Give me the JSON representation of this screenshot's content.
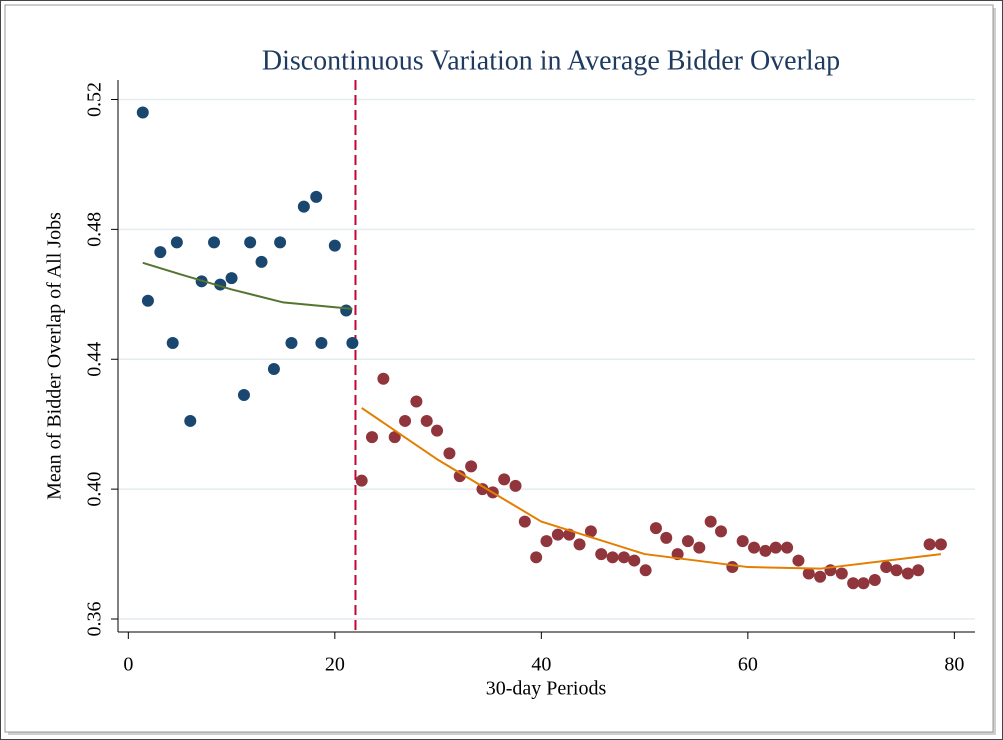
{
  "chart_data": {
    "type": "scatter",
    "title": "Discontinuous Variation in Average Bidder Overlap",
    "xlabel": "30-day Periods",
    "ylabel": "Mean of Bidder Overlap of All Jobs",
    "xlim": [
      -1,
      82
    ],
    "ylim": [
      0.356,
      0.526
    ],
    "xticks": [
      0,
      20,
      40,
      60,
      80
    ],
    "yticks": [
      {
        "value": 0.36,
        "label": "0.36"
      },
      {
        "value": 0.4,
        "label": "0.40"
      },
      {
        "value": 0.44,
        "label": "0.44"
      },
      {
        "value": 0.48,
        "label": "0.48"
      },
      {
        "value": 0.52,
        "label": "0.52"
      }
    ],
    "grid": true,
    "vline": 22,
    "vline_color": "#c10534",
    "series": [
      {
        "mode": "markers",
        "color": "#1a476f",
        "x": [
          1.4,
          1.9,
          3.1,
          4.3,
          4.7,
          6.0,
          7.1,
          8.3,
          8.9,
          10.0,
          11.2,
          11.8,
          12.9,
          14.1,
          14.7,
          15.8,
          17.0,
          18.2,
          18.7,
          20.0,
          21.1,
          21.7
        ],
        "values": [
          0.516,
          0.458,
          0.473,
          0.445,
          0.476,
          0.421,
          0.464,
          0.476,
          0.463,
          0.465,
          0.429,
          0.476,
          0.47,
          0.437,
          0.476,
          0.445,
          0.487,
          0.49,
          0.445,
          0.475,
          0.455,
          0.445
        ]
      },
      {
        "mode": "markers",
        "color": "#90353b",
        "x": [
          22.6,
          23.6,
          24.7,
          25.8,
          26.8,
          27.9,
          28.9,
          29.9,
          31.1,
          32.1,
          33.2,
          34.3,
          35.3,
          36.4,
          37.5,
          38.4,
          39.5,
          40.5,
          41.6,
          42.7,
          43.7,
          44.8,
          45.8,
          46.9,
          48.0,
          49.0,
          50.1,
          51.1,
          52.1,
          53.2,
          54.2,
          55.3,
          56.4,
          57.4,
          58.5,
          59.5,
          60.6,
          61.7,
          62.7,
          63.8,
          64.9,
          65.9,
          67.0,
          68.0,
          69.1,
          70.2,
          71.2,
          72.3,
          73.4,
          74.4,
          75.5,
          76.5,
          77.6,
          78.7
        ],
        "values": [
          0.4026,
          0.416,
          0.434,
          0.416,
          0.421,
          0.427,
          0.421,
          0.418,
          0.411,
          0.404,
          0.407,
          0.4,
          0.399,
          0.403,
          0.401,
          0.39,
          0.379,
          0.384,
          0.386,
          0.386,
          0.383,
          0.387,
          0.38,
          0.379,
          0.379,
          0.378,
          0.375,
          0.388,
          0.385,
          0.38,
          0.384,
          0.382,
          0.39,
          0.387,
          0.376,
          0.384,
          0.382,
          0.381,
          0.382,
          0.382,
          0.378,
          0.374,
          0.373,
          0.375,
          0.374,
          0.371,
          0.371,
          0.372,
          0.376,
          0.375,
          0.374,
          0.375,
          0.383,
          0.383
        ]
      },
      {
        "mode": "line",
        "color": "#55752f",
        "x": [
          1.4,
          5,
          10,
          15,
          21.7
        ],
        "values": [
          0.4697,
          0.4662,
          0.4615,
          0.4575,
          0.4555
        ]
      },
      {
        "mode": "line",
        "color": "#e37e00",
        "x": [
          22.6,
          30,
          40,
          50,
          60,
          67,
          78.7
        ],
        "values": [
          0.425,
          0.409,
          0.39,
          0.38,
          0.376,
          0.3755,
          0.38
        ]
      }
    ]
  }
}
